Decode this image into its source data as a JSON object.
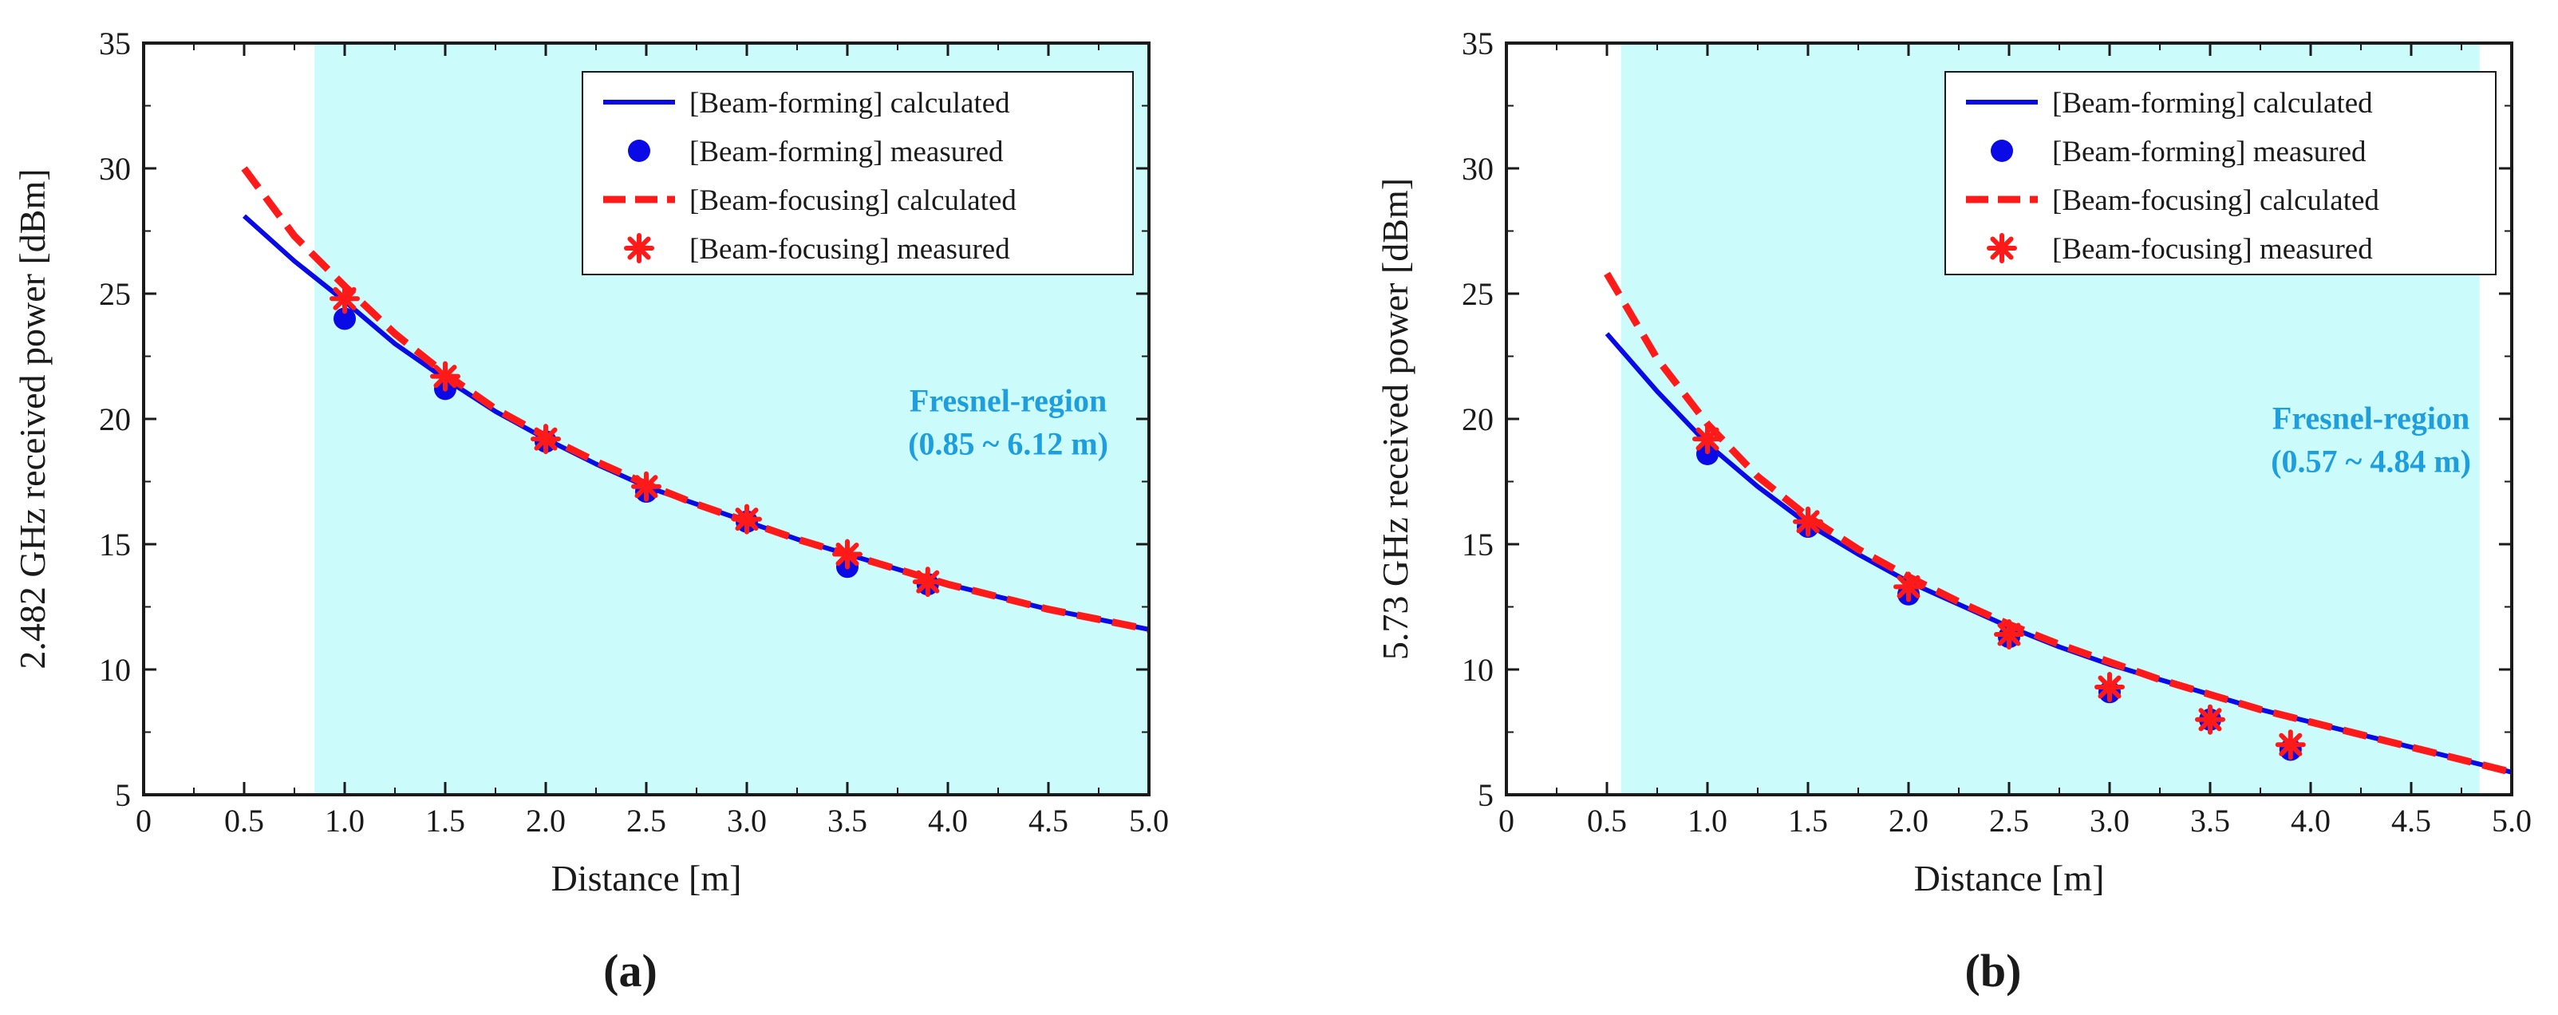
{
  "colors": {
    "region_fill": "#ccfbfb",
    "beam_forming": "#0a0ae6",
    "beam_focusing": "#ff1a1a",
    "region_text": "#1f9ede",
    "axis": "#1a1a1a"
  },
  "chart_data": [
    {
      "type": "line",
      "panel_label": "(a)",
      "xlabel": "Distance [m]",
      "ylabel": "2.482 GHz received power [dBm]",
      "xlim": [
        0,
        5.0
      ],
      "ylim": [
        5,
        35
      ],
      "xticks": [
        0,
        0.5,
        1.0,
        1.5,
        2.0,
        2.5,
        3.0,
        3.5,
        4.0,
        4.5,
        5.0
      ],
      "xtick_labels": [
        "0",
        "0.5",
        "1.0",
        "1.5",
        "2.0",
        "2.5",
        "3.0",
        "3.5",
        "4.0",
        "4.5",
        "5.0"
      ],
      "yticks": [
        5,
        10,
        15,
        20,
        25,
        30,
        35
      ],
      "ytick_labels": [
        "5",
        "10",
        "15",
        "20",
        "25",
        "30",
        "35"
      ],
      "region": {
        "x_start": 0.85,
        "x_end": 5.0,
        "label_line1": "Fresnel-region",
        "label_line2": "(0.85 ~ 6.12 m)",
        "label_x": 4.3,
        "label_y": 20.3
      },
      "legend_position": "top-right",
      "series": [
        {
          "name": "[Beam-forming] calculated",
          "style": "solid-line",
          "x": [
            0.5,
            0.75,
            1.0,
            1.25,
            1.5,
            1.75,
            2.0,
            2.25,
            2.5,
            2.75,
            3.0,
            3.25,
            3.5,
            3.75,
            4.0,
            4.25,
            4.5,
            4.75,
            5.0
          ],
          "y": [
            28.1,
            26.3,
            24.7,
            23.0,
            21.6,
            20.3,
            19.2,
            18.2,
            17.3,
            16.6,
            15.9,
            15.2,
            14.6,
            14.0,
            13.4,
            12.9,
            12.4,
            12.0,
            11.6
          ]
        },
        {
          "name": "[Beam-forming] measured",
          "style": "circle",
          "x": [
            1.0,
            1.5,
            2.0,
            2.5,
            3.0,
            3.5,
            3.9
          ],
          "y": [
            24.0,
            21.2,
            19.1,
            17.1,
            15.9,
            14.1,
            13.4
          ]
        },
        {
          "name": "[Beam-focusing] calculated",
          "style": "dashed-line",
          "x": [
            0.5,
            0.75,
            1.0,
            1.25,
            1.5,
            1.75,
            2.0,
            2.25,
            2.5,
            2.75,
            3.0,
            3.25,
            3.5,
            3.75,
            4.0,
            4.25,
            4.5,
            4.75,
            5.0
          ],
          "y": [
            30.0,
            27.3,
            25.3,
            23.4,
            21.8,
            20.4,
            19.3,
            18.3,
            17.4,
            16.6,
            15.9,
            15.2,
            14.6,
            14.0,
            13.4,
            12.9,
            12.4,
            12.0,
            11.6
          ]
        },
        {
          "name": "[Beam-focusing] measured",
          "style": "asterisk",
          "x": [
            1.0,
            1.5,
            2.0,
            2.5,
            3.0,
            3.5,
            3.9
          ],
          "y": [
            24.8,
            21.7,
            19.2,
            17.3,
            16.0,
            14.6,
            13.5
          ]
        }
      ]
    },
    {
      "type": "line",
      "panel_label": "(b)",
      "xlabel": "Distance [m]",
      "ylabel": "5.73 GHz received power [dBm]",
      "xlim": [
        0,
        5.0
      ],
      "ylim": [
        5,
        35
      ],
      "xticks": [
        0,
        0.5,
        1.0,
        1.5,
        2.0,
        2.5,
        3.0,
        3.5,
        4.0,
        4.5,
        5.0
      ],
      "xtick_labels": [
        "0",
        "0.5",
        "1.0",
        "1.5",
        "2.0",
        "2.5",
        "3.0",
        "3.5",
        "4.0",
        "4.5",
        "5.0"
      ],
      "yticks": [
        5,
        10,
        15,
        20,
        25,
        30,
        35
      ],
      "ytick_labels": [
        "5",
        "10",
        "15",
        "20",
        "25",
        "30",
        "35"
      ],
      "region": {
        "x_start": 0.57,
        "x_end": 4.84,
        "label_line1": "Fresnel-region",
        "label_line2": "(0.57 ~ 4.84 m)",
        "label_x": 4.3,
        "label_y": 19.6
      },
      "legend_position": "top-right",
      "series": [
        {
          "name": "[Beam-forming] calculated",
          "style": "solid-line",
          "x": [
            0.5,
            0.75,
            1.0,
            1.25,
            1.5,
            1.75,
            2.0,
            2.25,
            2.5,
            2.75,
            3.0,
            3.25,
            3.5,
            3.75,
            4.0,
            4.25,
            4.5,
            4.75,
            5.0
          ],
          "y": [
            23.4,
            21.1,
            19.0,
            17.3,
            15.8,
            14.6,
            13.5,
            12.6,
            11.7,
            10.9,
            10.2,
            9.6,
            9.0,
            8.4,
            7.9,
            7.4,
            6.9,
            6.4,
            5.9
          ]
        },
        {
          "name": "[Beam-forming] measured",
          "style": "circle",
          "x": [
            1.0,
            1.5,
            2.0,
            2.5,
            3.0,
            3.5,
            3.9
          ],
          "y": [
            18.6,
            15.7,
            13.0,
            11.3,
            9.1,
            8.0,
            6.8
          ]
        },
        {
          "name": "[Beam-focusing] calculated",
          "style": "dashed-line",
          "x": [
            0.5,
            0.75,
            1.0,
            1.25,
            1.5,
            1.75,
            2.0,
            2.25,
            2.5,
            2.75,
            3.0,
            3.25,
            3.5,
            3.75,
            4.0,
            4.25,
            4.5,
            4.75,
            5.0
          ],
          "y": [
            25.8,
            22.4,
            19.8,
            17.7,
            16.1,
            14.8,
            13.7,
            12.7,
            11.8,
            11.0,
            10.3,
            9.6,
            9.0,
            8.4,
            7.9,
            7.4,
            6.9,
            6.4,
            5.9
          ]
        },
        {
          "name": "[Beam-focusing] measured",
          "style": "asterisk",
          "x": [
            1.0,
            1.5,
            2.0,
            2.5,
            3.0,
            3.5,
            3.9
          ],
          "y": [
            19.2,
            15.9,
            13.3,
            11.4,
            9.3,
            8.0,
            7.0
          ]
        }
      ]
    }
  ]
}
